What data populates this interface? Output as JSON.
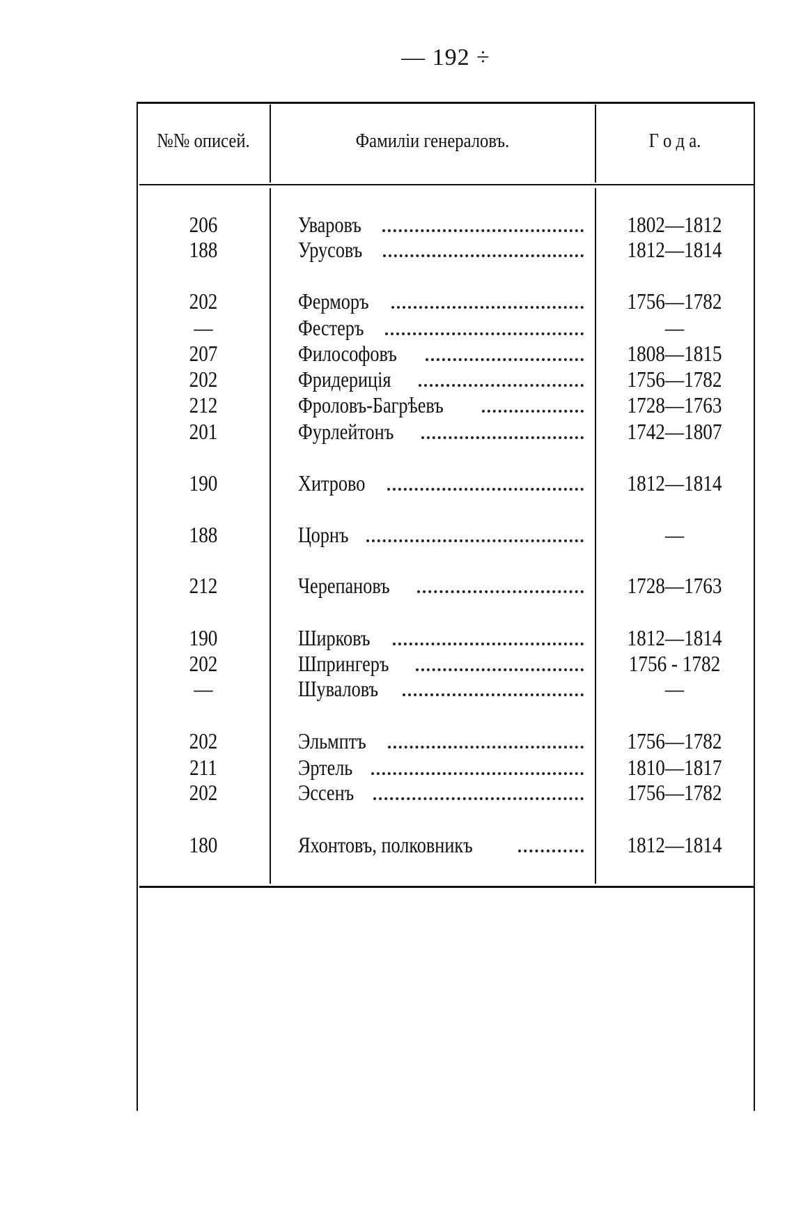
{
  "page_number": "— 192 ÷",
  "table": {
    "headers": [
      "№№ описей.",
      "Фамиліи генераловъ.",
      "Г о д а."
    ],
    "rows": [
      {
        "num": "206",
        "name": "Уваровъ",
        "years": "1802—1812"
      },
      {
        "num": "188",
        "name": "Урусовъ",
        "years": "1812—1814"
      },
      {
        "num": "202",
        "name": "Ферморъ",
        "years": "1756—1782"
      },
      {
        "num": "—",
        "name": "Фестеръ",
        "years": "—"
      },
      {
        "num": "207",
        "name": "Философовъ",
        "years": "1808—1815"
      },
      {
        "num": "202",
        "name": "Фридериція",
        "years": "1756—1782"
      },
      {
        "num": "212",
        "name": "Фроловъ-Багрѣевъ",
        "years": "1728—1763"
      },
      {
        "num": "201",
        "name": "Фурлейтонъ",
        "years": "1742—1807"
      },
      {
        "num": "190",
        "name": "Хитрово",
        "years": "1812—1814"
      },
      {
        "num": "188",
        "name": "Цорнъ",
        "years": "—"
      },
      {
        "num": "212",
        "name": "Черепановъ",
        "years": "1728—1763"
      },
      {
        "num": "190",
        "name": "Ширковъ",
        "years": "1812—1814"
      },
      {
        "num": "202",
        "name": "Шпрингеръ",
        "years": "1756 - 1782"
      },
      {
        "num": "—",
        "name": "Шуваловъ",
        "years": "—"
      },
      {
        "num": "202",
        "name": "Эльмптъ",
        "years": "1756—1782"
      },
      {
        "num": "211",
        "name": "Эртель",
        "years": "1810—1817"
      },
      {
        "num": "202",
        "name": "Эссенъ",
        "years": "1756—1782"
      },
      {
        "num": "180",
        "name": "Яхонтовъ, полковникъ",
        "years": "1812—1814"
      }
    ]
  }
}
